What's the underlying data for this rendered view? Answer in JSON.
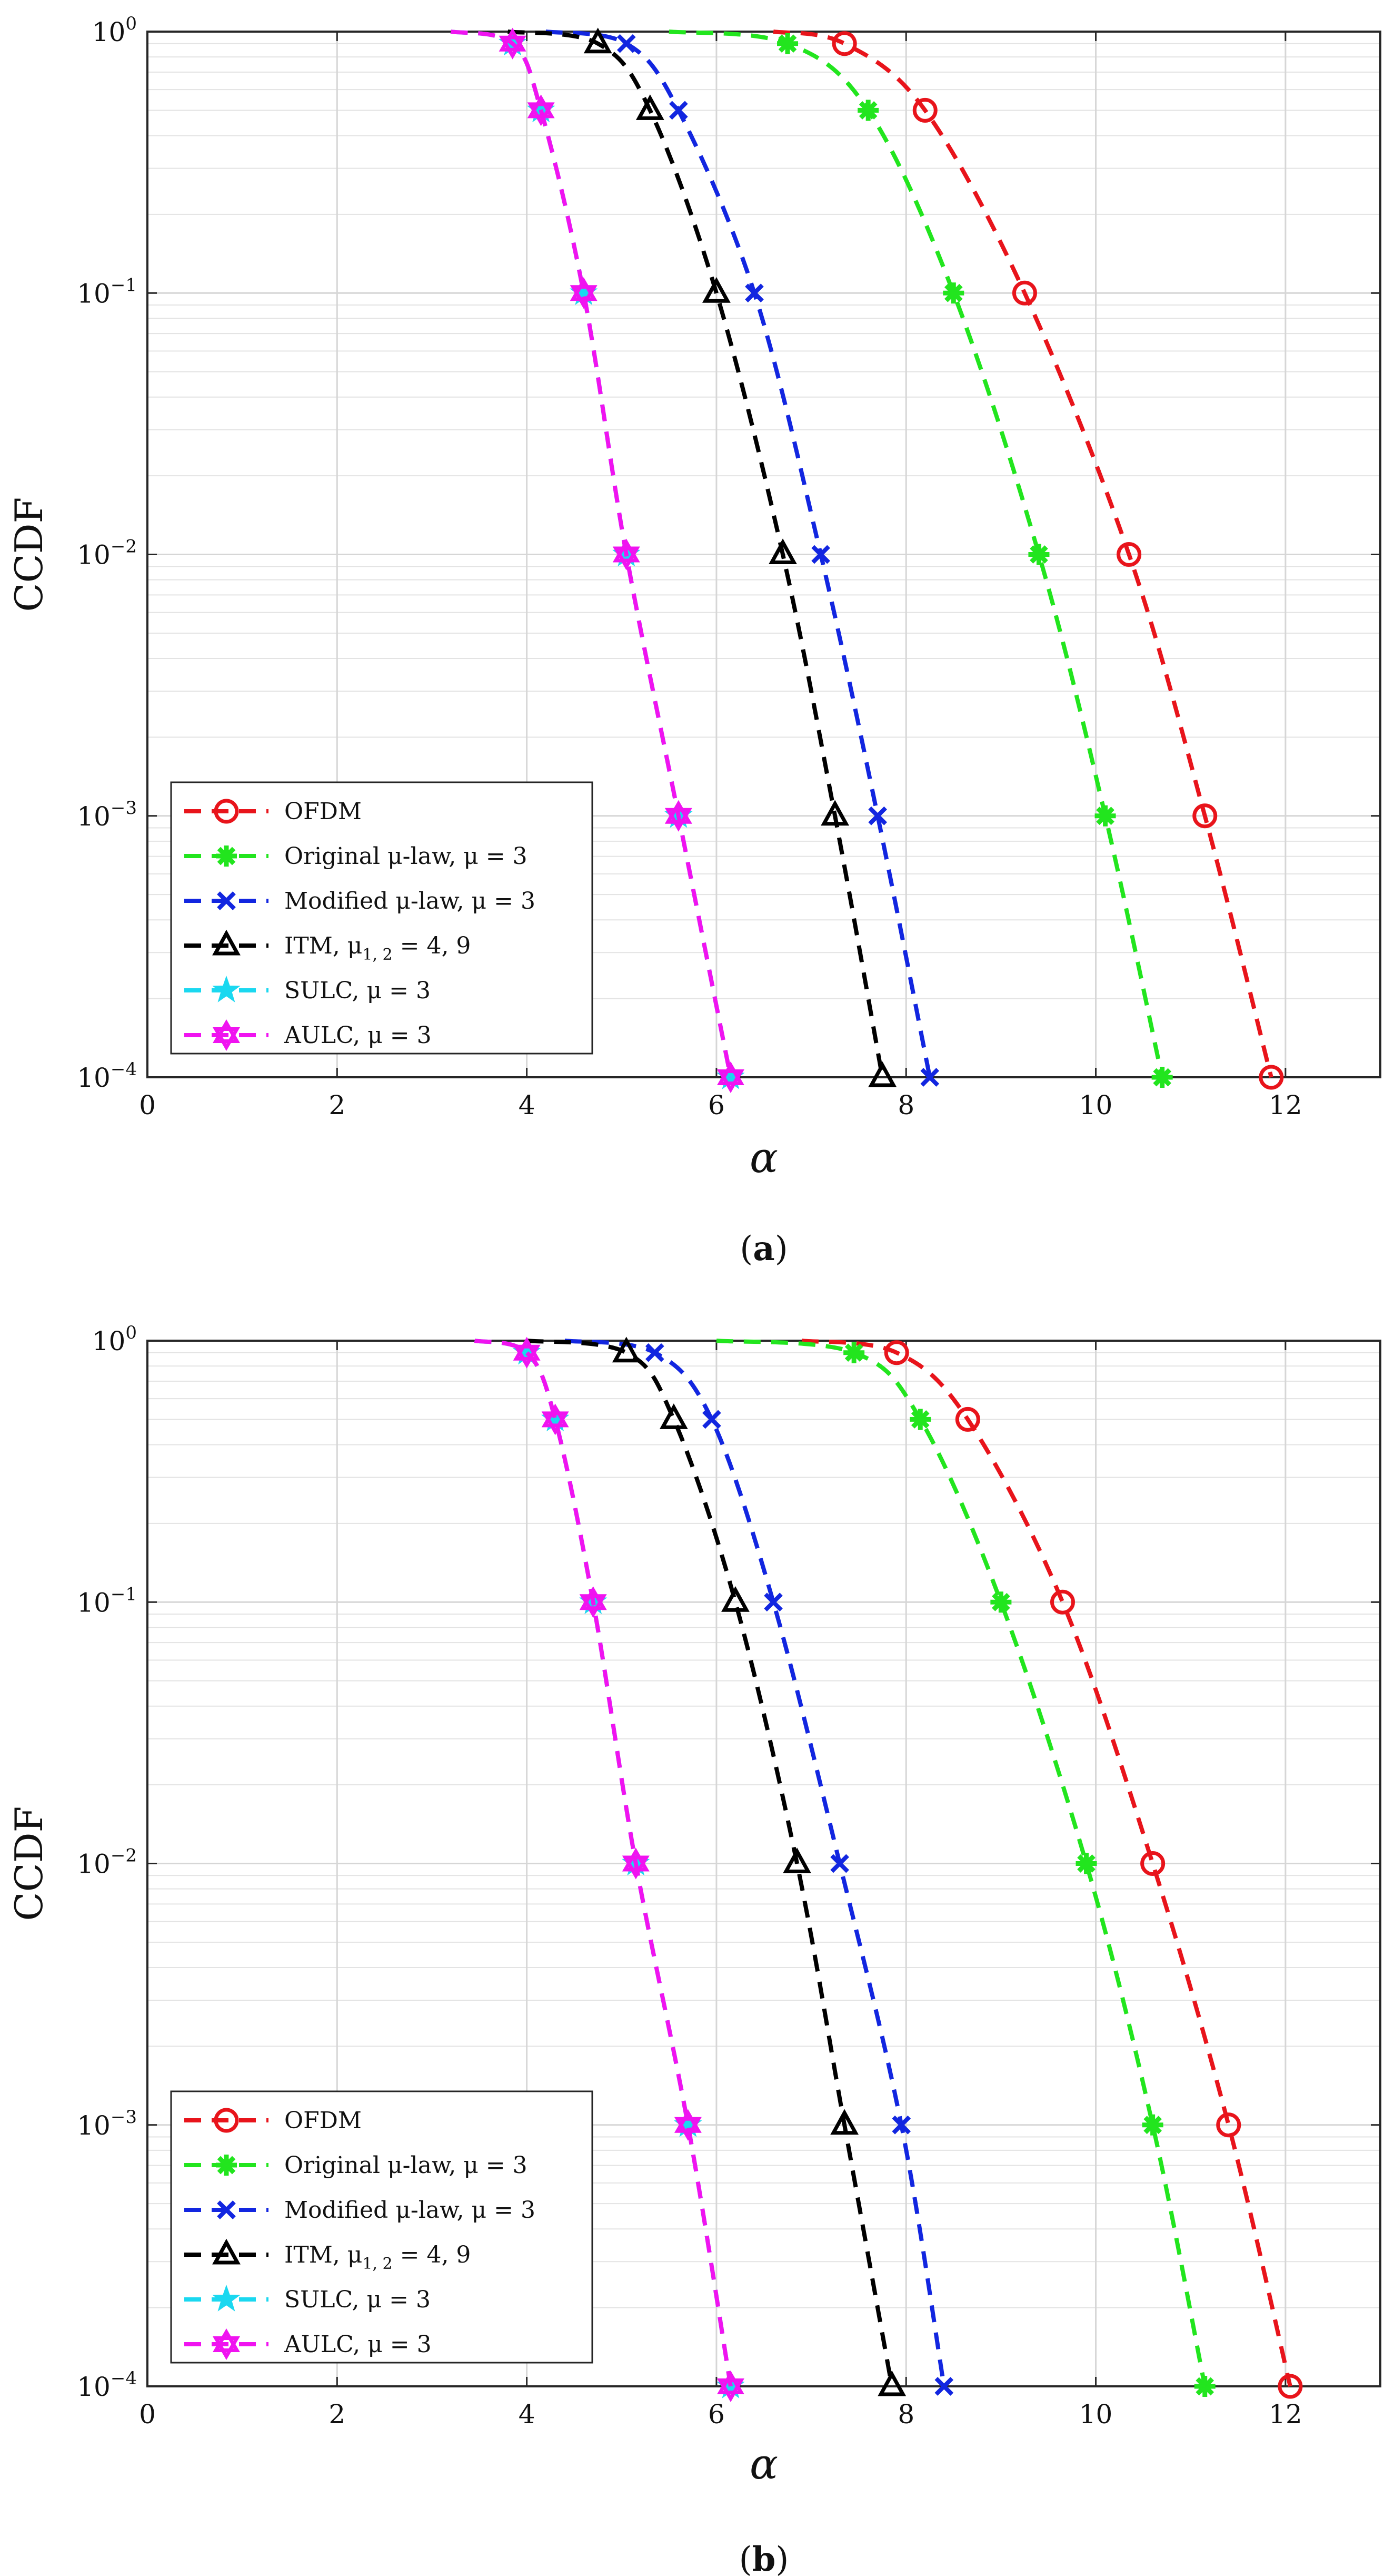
{
  "chart_data": [
    {
      "type": "line",
      "caption": "(a)",
      "caption_letter": "a",
      "title": "",
      "xlabel": "α",
      "ylabel": "CCDF",
      "xlim": [
        0,
        13
      ],
      "ylim": [
        0.0001,
        1
      ],
      "yscale": "log",
      "xticks": [
        0,
        2,
        4,
        6,
        8,
        10,
        12
      ],
      "yticks": [
        {
          "base": "10",
          "exp": "−4",
          "value": 0.0001
        },
        {
          "base": "10",
          "exp": "−3",
          "value": 0.001
        },
        {
          "base": "10",
          "exp": "−2",
          "value": 0.01
        },
        {
          "base": "10",
          "exp": "−1",
          "value": 0.1
        },
        {
          "base": "10",
          "exp": "0",
          "value": 1
        }
      ],
      "grid": true,
      "legend_position": "bottom-left",
      "series": [
        {
          "name": "OFDM",
          "color": "#e8141b",
          "marker": "circle",
          "x": [
            6.6,
            7.35,
            8.2,
            9.25,
            10.35,
            11.15,
            11.85
          ],
          "y": [
            1.0,
            0.9,
            0.5,
            0.1,
            0.01,
            0.001,
            0.0001
          ]
        },
        {
          "name": "Original μ-law, μ = 3",
          "color": "#22e51e",
          "marker": "asterisk",
          "x": [
            5.5,
            6.75,
            7.6,
            8.5,
            9.4,
            10.1,
            10.7
          ],
          "y": [
            1.0,
            0.9,
            0.5,
            0.1,
            0.01,
            0.001,
            0.0001
          ]
        },
        {
          "name": "Modified μ-law, μ = 3",
          "color": "#1226e0",
          "marker": "x",
          "x": [
            4.2,
            5.05,
            5.6,
            6.4,
            7.1,
            7.7,
            8.25
          ],
          "y": [
            1.0,
            0.9,
            0.5,
            0.1,
            0.01,
            0.001,
            0.0001
          ]
        },
        {
          "name": "ITM, μ1, 2 = 4, 9",
          "color": "#000000",
          "marker": "triangle",
          "x": [
            3.8,
            4.75,
            5.3,
            6.0,
            6.7,
            7.25,
            7.75
          ],
          "y": [
            1.0,
            0.9,
            0.5,
            0.1,
            0.01,
            0.001,
            0.0001
          ]
        },
        {
          "name": "SULC, μ = 3",
          "color": "#1ad8f0",
          "marker": "star",
          "x": [
            3.2,
            3.85,
            4.15,
            4.6,
            5.05,
            5.6,
            6.15
          ],
          "y": [
            1.0,
            0.9,
            0.5,
            0.1,
            0.01,
            0.001,
            0.0001
          ]
        },
        {
          "name": "AULC, μ = 3",
          "color": "#f013f0",
          "marker": "hexagram",
          "x": [
            3.2,
            3.85,
            4.15,
            4.6,
            5.05,
            5.6,
            6.15
          ],
          "y": [
            1.0,
            0.9,
            0.5,
            0.1,
            0.01,
            0.001,
            0.0001
          ]
        }
      ]
    },
    {
      "type": "line",
      "caption": "(b)",
      "caption_letter": "b",
      "title": "",
      "xlabel": "α",
      "ylabel": "CCDF",
      "xlim": [
        0,
        13
      ],
      "ylim": [
        0.0001,
        1
      ],
      "yscale": "log",
      "xticks": [
        0,
        2,
        4,
        6,
        8,
        10,
        12
      ],
      "yticks": [
        {
          "base": "10",
          "exp": "−4",
          "value": 0.0001
        },
        {
          "base": "10",
          "exp": "−3",
          "value": 0.001
        },
        {
          "base": "10",
          "exp": "−2",
          "value": 0.01
        },
        {
          "base": "10",
          "exp": "−1",
          "value": 0.1
        },
        {
          "base": "10",
          "exp": "0",
          "value": 1
        }
      ],
      "grid": true,
      "legend_position": "bottom-left",
      "series": [
        {
          "name": "OFDM",
          "color": "#e8141b",
          "marker": "circle",
          "x": [
            6.9,
            7.9,
            8.65,
            9.65,
            10.6,
            11.4,
            12.05
          ],
          "y": [
            1.0,
            0.9,
            0.5,
            0.1,
            0.01,
            0.001,
            0.0001
          ]
        },
        {
          "name": "Original μ-law, μ = 3",
          "color": "#22e51e",
          "marker": "asterisk",
          "x": [
            6.0,
            7.45,
            8.15,
            9.0,
            9.9,
            10.6,
            11.15
          ],
          "y": [
            1.0,
            0.9,
            0.5,
            0.1,
            0.01,
            0.001,
            0.0001
          ]
        },
        {
          "name": "Modified μ-law, μ = 3",
          "color": "#1226e0",
          "marker": "x",
          "x": [
            4.4,
            5.35,
            5.95,
            6.6,
            7.3,
            7.95,
            8.4
          ],
          "y": [
            1.0,
            0.9,
            0.5,
            0.1,
            0.01,
            0.001,
            0.0001
          ]
        },
        {
          "name": "ITM, μ1, 2 = 4, 9",
          "color": "#000000",
          "marker": "triangle",
          "x": [
            4.0,
            5.05,
            5.55,
            6.2,
            6.85,
            7.35,
            7.85
          ],
          "y": [
            1.0,
            0.9,
            0.5,
            0.1,
            0.01,
            0.001,
            0.0001
          ]
        },
        {
          "name": "SULC, μ = 3",
          "color": "#1ad8f0",
          "marker": "star",
          "x": [
            3.45,
            4.0,
            4.3,
            4.7,
            5.15,
            5.7,
            6.15
          ],
          "y": [
            1.0,
            0.9,
            0.5,
            0.1,
            0.01,
            0.001,
            0.0001
          ]
        },
        {
          "name": "AULC, μ = 3",
          "color": "#f013f0",
          "marker": "hexagram",
          "x": [
            3.45,
            4.0,
            4.3,
            4.7,
            5.15,
            5.7,
            6.15
          ],
          "y": [
            1.0,
            0.9,
            0.5,
            0.1,
            0.01,
            0.001,
            0.0001
          ]
        }
      ]
    }
  ],
  "legend_entries": [
    {
      "label": "OFDM",
      "color": "#e8141b",
      "marker": "circle"
    },
    {
      "label": "Original μ-law, μ = 3",
      "color": "#22e51e",
      "marker": "asterisk"
    },
    {
      "label": "Modified μ-law, μ = 3",
      "color": "#1226e0",
      "marker": "x"
    },
    {
      "label": "ITM, μ1, 2 = 4, 9",
      "color": "#000000",
      "marker": "triangle"
    },
    {
      "label": "SULC, μ = 3",
      "color": "#1ad8f0",
      "marker": "star"
    },
    {
      "label": "AULC, μ = 3",
      "color": "#f013f0",
      "marker": "hexagram"
    }
  ]
}
